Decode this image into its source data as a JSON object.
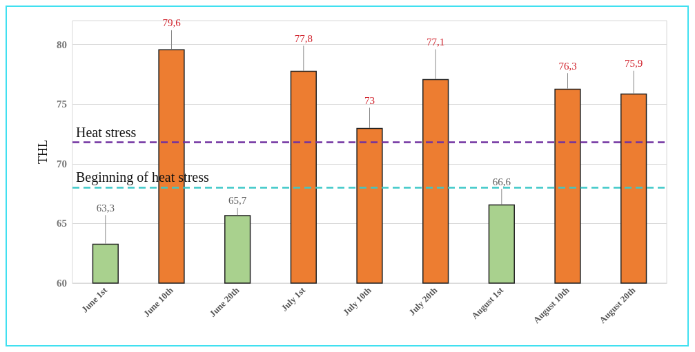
{
  "chart_data": {
    "type": "bar",
    "ylabel": "THL",
    "categories": [
      "June 1st",
      "June 10th",
      "June 20th",
      "July 1st",
      "July 10th",
      "July 20th",
      "August 1st",
      "August 10th",
      "August 20th"
    ],
    "values": [
      63.3,
      79.6,
      65.7,
      77.8,
      73,
      77.1,
      66.6,
      76.3,
      75.9
    ],
    "value_labels": [
      "63,3",
      "79,6",
      "65,7",
      "77,8",
      "73",
      "77,1",
      "66,6",
      "76,3",
      "75,9"
    ],
    "colors": [
      "#a9d18e",
      "#ed7d31",
      "#a9d18e",
      "#ed7d31",
      "#ed7d31",
      "#ed7d31",
      "#a9d18e",
      "#ed7d31",
      "#ed7d31"
    ],
    "errors": [
      [
        63.3,
        65.7
      ],
      [
        79.6,
        81.2
      ],
      [
        65.7,
        66.3
      ],
      [
        77.8,
        79.9
      ],
      [
        73,
        74.7
      ],
      [
        77.1,
        79.6
      ],
      [
        66.6,
        67.9
      ],
      [
        76.3,
        77.6
      ],
      [
        75.9,
        77.8
      ]
    ],
    "ref_lines": [
      {
        "axis": "y",
        "value": 71.8,
        "label": "Heat stress",
        "color": "#7030a0",
        "line_style": "dashed"
      },
      {
        "axis": "y",
        "value": 68,
        "label": "Beginning of heat stress",
        "color": "#3cc8c8",
        "line_style": "dashed"
      }
    ],
    "ylim": [
      60,
      82
    ],
    "yticks": [
      60,
      65,
      70,
      75,
      80
    ],
    "grid": "y"
  }
}
